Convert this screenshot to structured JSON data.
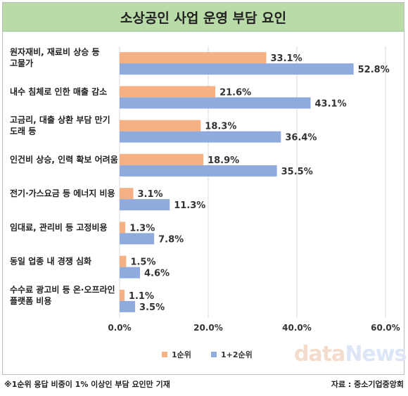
{
  "colors": {
    "series1": "#f5b183",
    "series2": "#8faadc",
    "title_bg": "#b9dba8"
  },
  "footnote": "※1순위 응답 비중이 1% 이상인 부담 요인만 기재",
  "source": "자료 : 중소기업중앙회",
  "watermark": {
    "part1": "data",
    "part2": "News"
  },
  "chart_data": {
    "type": "bar",
    "orientation": "horizontal",
    "title": "소상공인 사업 운영 부담 요인",
    "categories": [
      [
        "원자재비, 재료비 상승 등",
        "고물가"
      ],
      [
        "내수 침체로 인한 매출 감소"
      ],
      [
        "고금리, 대출 상환 부담 만기",
        "도래 등"
      ],
      [
        "인건비 상승, 인력 확보 어려움"
      ],
      [
        "전기·가스요금 등 에너지 비용"
      ],
      [
        "임대료, 관리비 등 고정비용"
      ],
      [
        "동일 업종 내 경쟁 심화"
      ],
      [
        "수수료 광고비 등 온·오프라인",
        "플랫폼 비용"
      ]
    ],
    "series": [
      {
        "name": "1순위",
        "values": [
          33.1,
          21.6,
          18.3,
          18.9,
          3.1,
          1.3,
          1.5,
          1.1
        ],
        "color": "#f5b183"
      },
      {
        "name": "1+2순위",
        "values": [
          52.8,
          43.1,
          36.4,
          35.5,
          11.3,
          7.8,
          4.6,
          3.5
        ],
        "color": "#8faadc"
      }
    ],
    "data_labels": [
      [
        "33.1%",
        "21.6%",
        "18.3%",
        "18.9%",
        "3.1%",
        "1.3%",
        "1.5%",
        "1.1%"
      ],
      [
        "52.8%",
        "43.1%",
        "36.4%",
        "35.5%",
        "11.3%",
        "7.8%",
        "4.6%",
        "3.5%"
      ]
    ],
    "xlim": [
      0,
      60
    ],
    "xticks": [
      "0.0%",
      "20.0%",
      "40.0%",
      "60.0%"
    ],
    "grid": true,
    "legend_position": "bottom"
  }
}
